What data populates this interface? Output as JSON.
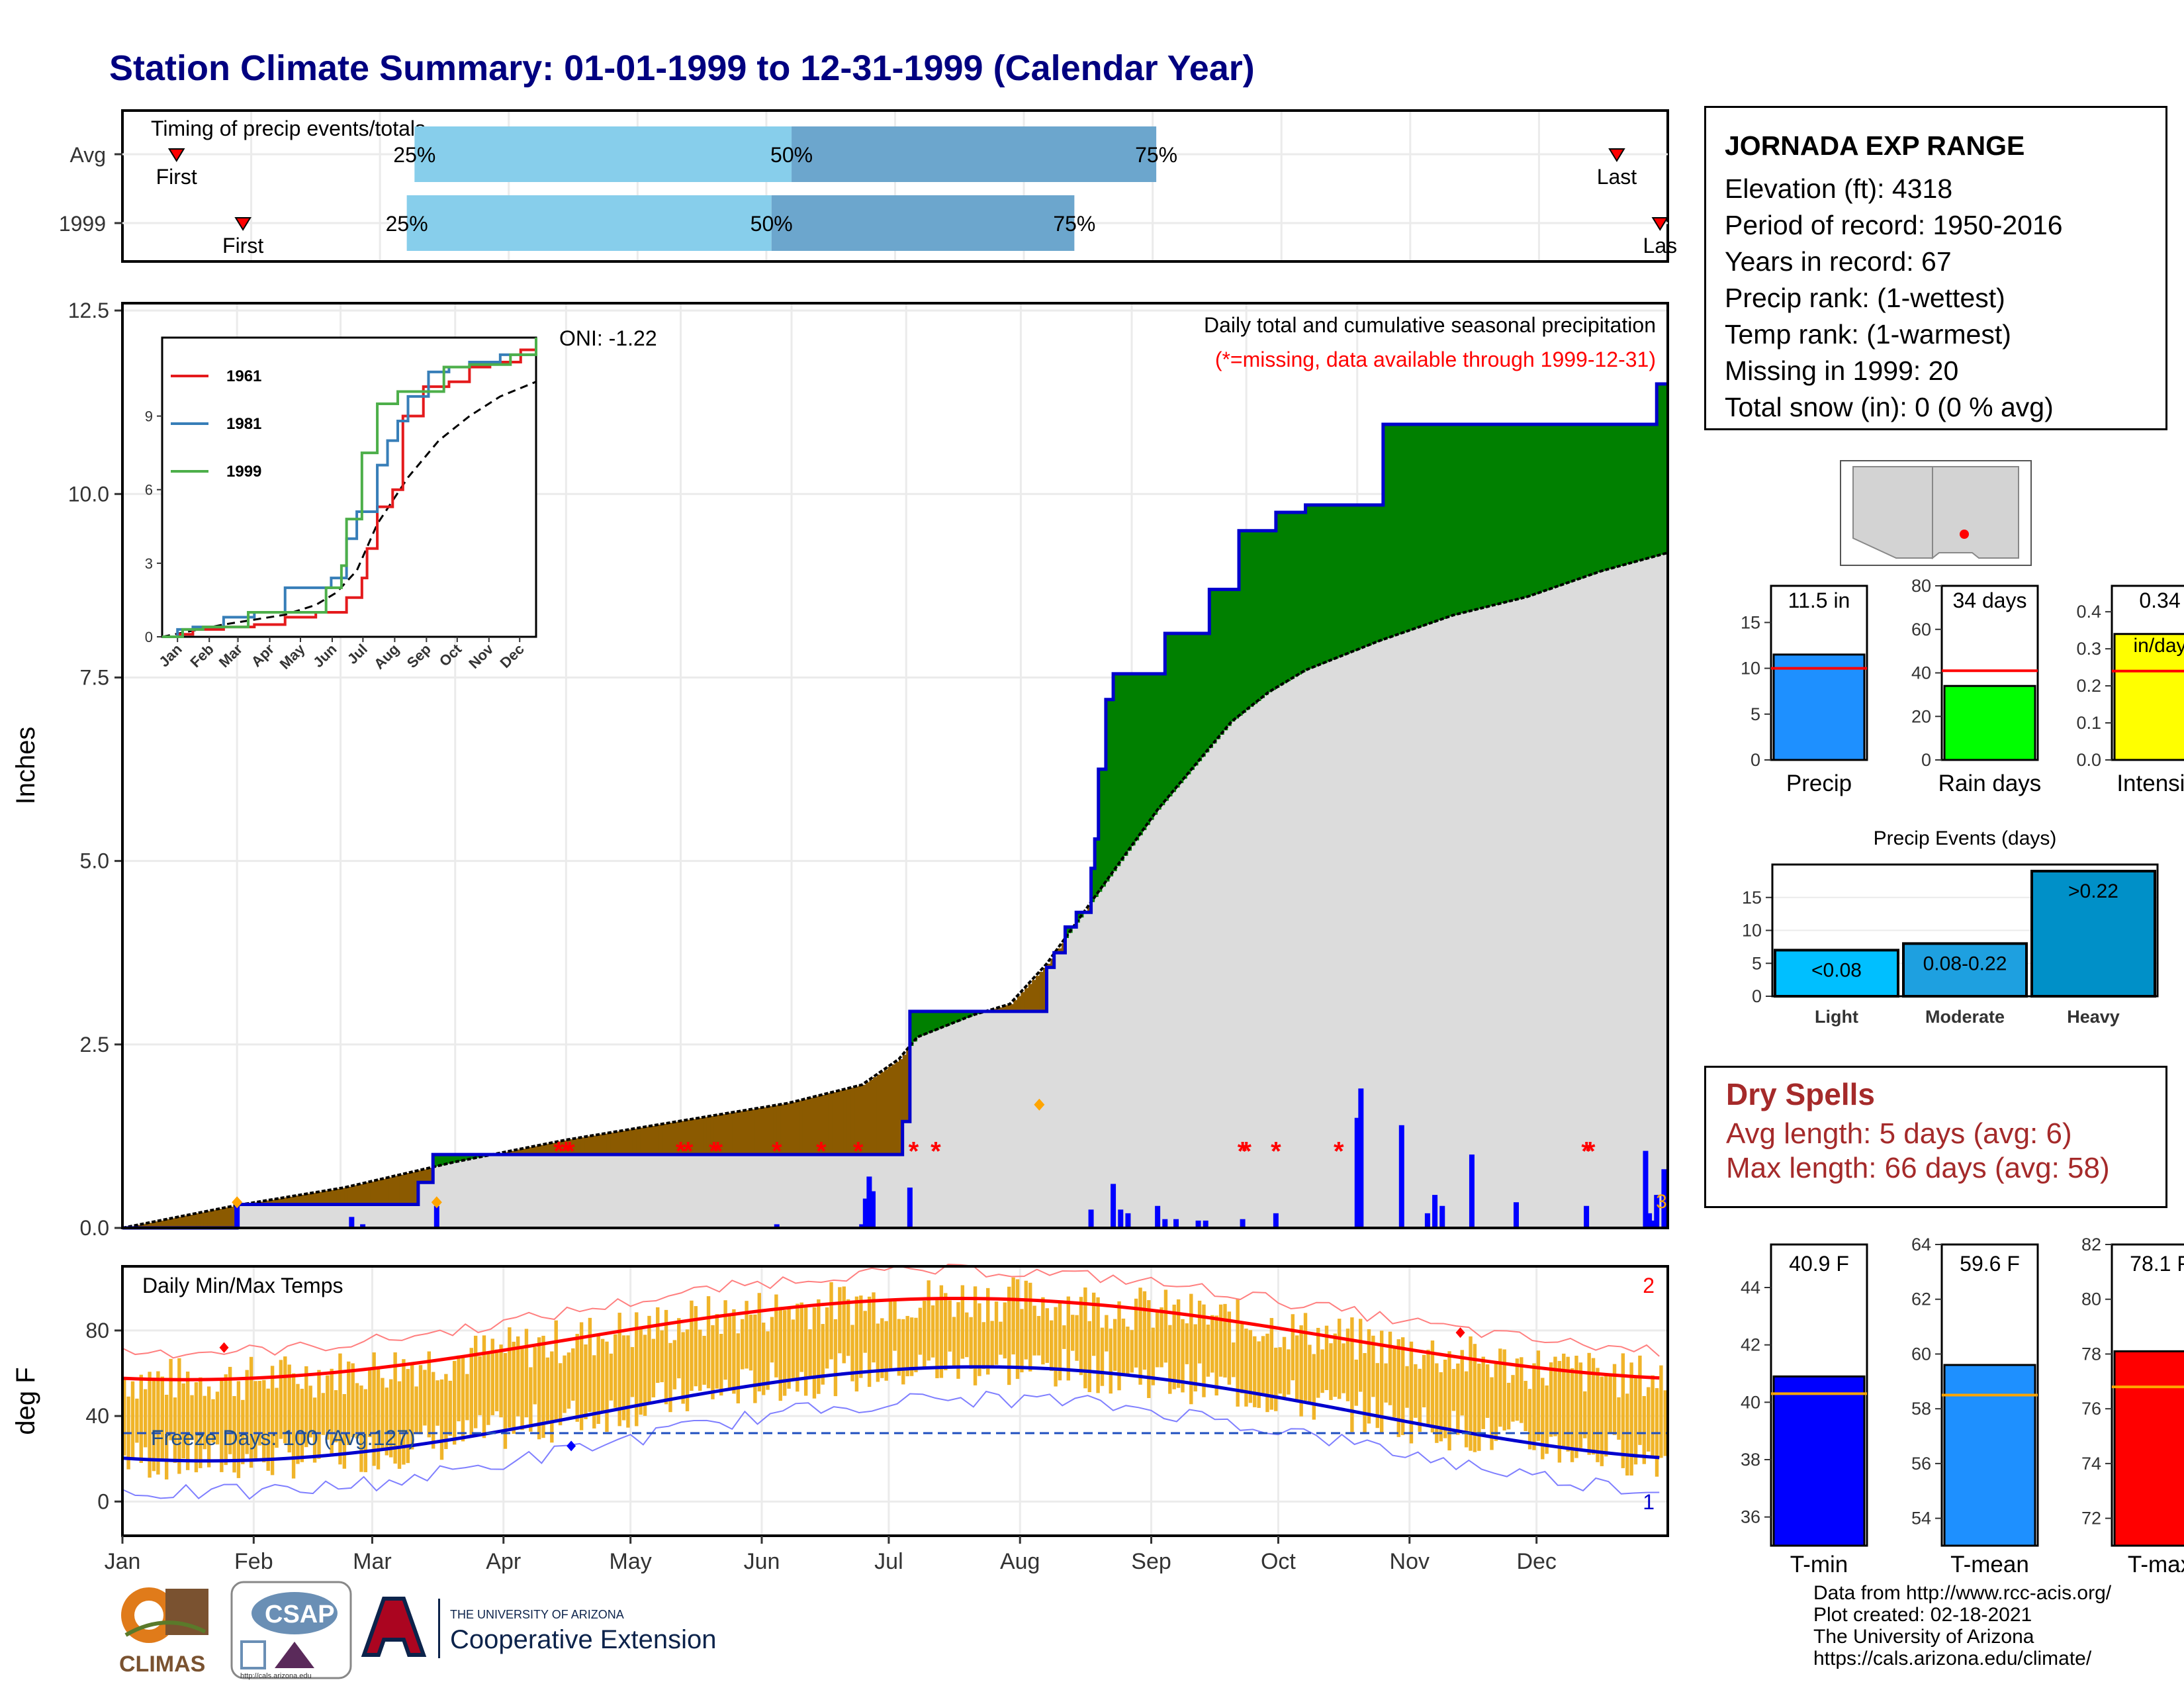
{
  "title": "Station Climate Summary: 01-01-1999 to 12-31-1999 (Calendar Year)",
  "timing": {
    "label": "Timing of precip events/totals",
    "rows": [
      {
        "name": "Avg",
        "first": "First",
        "last": "Last",
        "p25_pos": 0.189,
        "p50_pos": 0.433,
        "p75_pos": 0.669,
        "first_pos": 0.035,
        "last_pos": 0.967
      },
      {
        "name": "1999",
        "first": "First",
        "last": "Las",
        "p25_pos": 0.184,
        "p50_pos": 0.42,
        "p75_pos": 0.616,
        "first_pos": 0.078,
        "last_pos": 0.995
      }
    ],
    "pct_labels": [
      "25%",
      "50%",
      "75%"
    ]
  },
  "station": {
    "name": "JORNADA EXP RANGE",
    "lines": [
      "Elevation (ft): 4318",
      "Period of record: 1950-2016",
      "Years in record: 67",
      "Precip rank:  (1-wettest)",
      "Temp rank:  (1-warmest)",
      "Missing in 1999: 20",
      "Total snow (in): 0 (0 % avg)"
    ]
  },
  "precip_chart": {
    "ylabel": "Inches",
    "y_ticks": [
      "0.0",
      "2.5",
      "5.0",
      "7.5",
      "10.0",
      "12.5"
    ],
    "ylim": [
      0,
      12.6
    ],
    "oni": "ONI: -1.22",
    "caption": "Daily total and cumulative seasonal precipitation",
    "missing_note": "(*=missing, data available through 1999-12-31)",
    "corner_count": "3",
    "colors": {
      "above": "#008000",
      "below": "#8b5a00",
      "normal": "#dcdcdc",
      "line": "#0000cd",
      "missing": "#ff0000",
      "max": "#ffa500"
    }
  },
  "chart_data": {
    "type": "line",
    "cumulative_1999": [
      [
        0,
        0.0
      ],
      [
        31,
        0.32
      ],
      [
        71,
        0.32
      ],
      [
        79,
        0.32
      ],
      [
        80,
        0.62
      ],
      [
        84,
        1.0
      ],
      [
        210,
        1.0
      ],
      [
        211,
        1.45
      ],
      [
        213,
        2.95
      ],
      [
        248,
        2.95
      ],
      [
        250,
        3.55
      ],
      [
        252,
        3.75
      ],
      [
        255,
        4.1
      ],
      [
        258,
        4.3
      ],
      [
        262,
        4.9
      ],
      [
        263,
        5.3
      ],
      [
        264,
        6.25
      ],
      [
        266,
        7.2
      ],
      [
        268,
        7.55
      ],
      [
        280,
        7.55
      ],
      [
        282,
        8.1
      ],
      [
        292,
        8.1
      ],
      [
        294,
        8.7
      ],
      [
        300,
        8.7
      ],
      [
        302,
        9.5
      ],
      [
        310,
        9.5
      ],
      [
        312,
        9.75
      ],
      [
        318,
        9.75
      ],
      [
        320,
        9.85
      ],
      [
        340,
        9.85
      ],
      [
        341,
        10.95
      ],
      [
        414,
        10.95
      ],
      [
        415,
        11.5
      ],
      [
        418,
        11.5
      ]
    ],
    "normal_cumulative": [
      [
        0,
        0
      ],
      [
        30,
        0.3
      ],
      [
        60,
        0.55
      ],
      [
        90,
        0.9
      ],
      [
        120,
        1.2
      ],
      [
        150,
        1.45
      ],
      [
        180,
        1.7
      ],
      [
        200,
        1.95
      ],
      [
        210,
        2.3
      ],
      [
        215,
        2.6
      ],
      [
        230,
        2.9
      ],
      [
        240,
        3.05
      ],
      [
        250,
        3.6
      ],
      [
        260,
        4.3
      ],
      [
        270,
        5.0
      ],
      [
        280,
        5.7
      ],
      [
        290,
        6.3
      ],
      [
        300,
        6.9
      ],
      [
        310,
        7.3
      ],
      [
        320,
        7.6
      ],
      [
        340,
        8.0
      ],
      [
        360,
        8.35
      ],
      [
        380,
        8.6
      ],
      [
        400,
        8.95
      ],
      [
        418,
        9.2
      ]
    ],
    "daily_bars": [
      [
        31,
        0.3
      ],
      [
        62,
        0.15
      ],
      [
        65,
        0.05
      ],
      [
        85,
        0.3
      ],
      [
        177,
        0.05
      ],
      [
        200,
        0.05
      ],
      [
        201,
        0.4
      ],
      [
        202,
        0.7
      ],
      [
        203,
        0.5
      ],
      [
        213,
        0.55
      ],
      [
        262,
        0.25
      ],
      [
        268,
        0.6
      ],
      [
        270,
        0.25
      ],
      [
        272,
        0.2
      ],
      [
        280,
        0.3
      ],
      [
        282,
        0.12
      ],
      [
        285,
        0.12
      ],
      [
        291,
        0.1
      ],
      [
        293,
        0.1
      ],
      [
        303,
        0.12
      ],
      [
        312,
        0.2
      ],
      [
        334,
        1.5
      ],
      [
        335,
        1.9
      ],
      [
        346,
        1.4
      ],
      [
        353,
        0.2
      ],
      [
        355,
        0.45
      ],
      [
        357,
        0.3
      ],
      [
        365,
        1.0
      ],
      [
        377,
        0.35
      ],
      [
        396,
        0.3
      ],
      [
        412,
        1.05
      ],
      [
        413,
        0.2
      ],
      [
        414,
        0.1
      ],
      [
        415,
        0.45
      ],
      [
        417,
        0.8
      ]
    ],
    "missing_markers": [
      [
        118,
        1.05
      ],
      [
        120,
        1.05
      ],
      [
        121,
        1.05
      ],
      [
        151,
        1.05
      ],
      [
        153,
        1.05
      ],
      [
        160,
        1.05
      ],
      [
        161,
        1.05
      ],
      [
        177,
        1.05
      ],
      [
        189,
        1.05
      ],
      [
        199,
        1.05
      ],
      [
        214,
        1.05
      ],
      [
        220,
        1.05
      ],
      [
        303,
        1.05
      ],
      [
        304,
        1.05
      ],
      [
        312,
        1.05
      ],
      [
        329,
        1.05
      ],
      [
        396,
        1.05
      ],
      [
        397,
        1.05
      ]
    ],
    "inset": {
      "y_ticks": [
        "0",
        "3",
        "6",
        "9"
      ],
      "x_ticks": [
        "Jan",
        "Feb",
        "Mar",
        "Apr",
        "May",
        "Jun",
        "Jul",
        "Aug",
        "Sep",
        "Oct",
        "Nov",
        "Dec"
      ],
      "series": [
        {
          "name": "1961",
          "color": "#e41a1c",
          "values": [
            [
              0,
              0
            ],
            [
              15,
              0.1
            ],
            [
              30,
              0.3
            ],
            [
              60,
              0.4
            ],
            [
              90,
              0.5
            ],
            [
              120,
              0.8
            ],
            [
              150,
              1.0
            ],
            [
              180,
              1.6
            ],
            [
              195,
              2.4
            ],
            [
              200,
              3.6
            ],
            [
              210,
              5.3
            ],
            [
              225,
              6.0
            ],
            [
              235,
              9.0
            ],
            [
              255,
              10.2
            ],
            [
              280,
              10.4
            ],
            [
              300,
              11.0
            ],
            [
              320,
              11.2
            ],
            [
              350,
              11.7
            ],
            [
              365,
              12.0
            ]
          ]
        },
        {
          "name": "1981",
          "color": "#377eb8",
          "values": [
            [
              0,
              0
            ],
            [
              15,
              0.3
            ],
            [
              30,
              0.4
            ],
            [
              60,
              0.8
            ],
            [
              90,
              1.0
            ],
            [
              110,
              1.0
            ],
            [
              120,
              2.0
            ],
            [
              150,
              2.0
            ],
            [
              165,
              2.4
            ],
            [
              180,
              4.0
            ],
            [
              190,
              5.1
            ],
            [
              200,
              5.1
            ],
            [
              210,
              7.0
            ],
            [
              220,
              8.0
            ],
            [
              230,
              8.8
            ],
            [
              240,
              9.8
            ],
            [
              260,
              10.8
            ],
            [
              280,
              11.0
            ],
            [
              300,
              11.2
            ],
            [
              330,
              11.5
            ],
            [
              365,
              11.6
            ]
          ]
        },
        {
          "name": "1999",
          "color": "#4daf4a",
          "values": [
            [
              0,
              0
            ],
            [
              20,
              0.3
            ],
            [
              40,
              0.4
            ],
            [
              70,
              0.4
            ],
            [
              84,
              1.0
            ],
            [
              150,
              1.0
            ],
            [
              160,
              2.0
            ],
            [
              175,
              2.9
            ],
            [
              180,
              4.8
            ],
            [
              195,
              7.5
            ],
            [
              210,
              9.5
            ],
            [
              230,
              10.0
            ],
            [
              260,
              10.0
            ],
            [
              275,
              11.0
            ],
            [
              300,
              11.1
            ],
            [
              340,
              11.5
            ],
            [
              365,
              12.2
            ]
          ]
        }
      ],
      "normal": [
        [
          0,
          0
        ],
        [
          60,
          0.5
        ],
        [
          120,
          0.9
        ],
        [
          150,
          1.3
        ],
        [
          170,
          1.8
        ],
        [
          190,
          2.7
        ],
        [
          210,
          4.6
        ],
        [
          240,
          6.5
        ],
        [
          270,
          8.0
        ],
        [
          300,
          9.0
        ],
        [
          330,
          9.8
        ],
        [
          365,
          10.4
        ]
      ]
    },
    "months": [
      "Jan",
      "Feb",
      "Mar",
      "Apr",
      "May",
      "Jun",
      "Jul",
      "Aug",
      "Sep",
      "Oct",
      "Nov",
      "Dec"
    ]
  },
  "temp_chart": {
    "ylabel": "deg F",
    "y_ticks": [
      "0",
      "40",
      "80"
    ],
    "label": "Daily Min/Max Temps",
    "freeze": "Freeze Days: 100 (Avg:127)",
    "corner_top": "2",
    "corner_bottom": "1",
    "colors": {
      "bar": "#f0b429",
      "tmax": "#ff0000",
      "tmin": "#0000cd"
    }
  },
  "mini_bars": {
    "precip": {
      "label": "Precip",
      "value_text": "11.5 in",
      "value": 11.5,
      "avg": 10.0,
      "ymax": 19,
      "ticks": [
        "0",
        "5",
        "10",
        "15"
      ],
      "color": "#1e90ff"
    },
    "rain_days": {
      "label": "Rain days",
      "value_text": "34 days",
      "value": 34,
      "avg": 41,
      "ymax": 80,
      "ticks": [
        "0",
        "20",
        "40",
        "60",
        "80"
      ],
      "color": "#00ff00"
    },
    "intensity": {
      "label": "Intensity",
      "value_text": "0.34",
      "value_sub": "in/day",
      "value": 0.34,
      "avg": 0.24,
      "ymax": 0.47,
      "ticks": [
        "0.0",
        "0.1",
        "0.2",
        "0.3",
        "0.4"
      ],
      "color": "#ffff00"
    }
  },
  "precip_events": {
    "title": "Precip Events (days)",
    "ticks": [
      "0",
      "5",
      "10",
      "15"
    ],
    "bars": [
      {
        "cat": "Light",
        "label": "<0.08",
        "value": 7,
        "color": "#00bfff"
      },
      {
        "cat": "Moderate",
        "label": "0.08-0.22",
        "value": 8,
        "color": "#1ea0e0"
      },
      {
        "cat": "Heavy",
        "label": ">0.22",
        "value": 19,
        "color": "#0090c8"
      }
    ]
  },
  "dry_spells": {
    "title": "Dry Spells",
    "avg": "Avg length: 5 days (avg: 6)",
    "max": "Max length: 66 days (avg: 58)"
  },
  "temp_bars": {
    "tmin": {
      "label": "T-min",
      "value_text": "40.9 F",
      "value": 40.9,
      "avg": 40.3,
      "ymin": 35,
      "ymax": 45.5,
      "ticks": [
        "36",
        "38",
        "40",
        "42",
        "44"
      ],
      "color": "#0000ff"
    },
    "tmean": {
      "label": "T-mean",
      "value_text": "59.6 F",
      "value": 59.6,
      "avg": 58.5,
      "ymin": 53,
      "ymax": 64,
      "ticks": [
        "54",
        "56",
        "58",
        "60",
        "62",
        "64"
      ],
      "color": "#1e90ff"
    },
    "tmax": {
      "label": "T-max",
      "value_text": "78.1 F",
      "value": 78.1,
      "avg": 76.8,
      "ymin": 71,
      "ymax": 82,
      "ticks": [
        "72",
        "74",
        "76",
        "78",
        "80",
        "82"
      ],
      "color": "#ff0000"
    }
  },
  "footer": [
    "Data from http://www.rcc-acis.org/",
    "Plot created: 02-18-2021",
    "The University of Arizona",
    "https://cals.arizona.edu/climate/"
  ],
  "logos": {
    "climas": "CLIMAS",
    "csap": "CSAP",
    "csap_url": "http://cals.arizona.edu",
    "ua_small": "THE UNIVERSITY OF ARIZONA",
    "ua_big": "Cooperative Extension"
  }
}
